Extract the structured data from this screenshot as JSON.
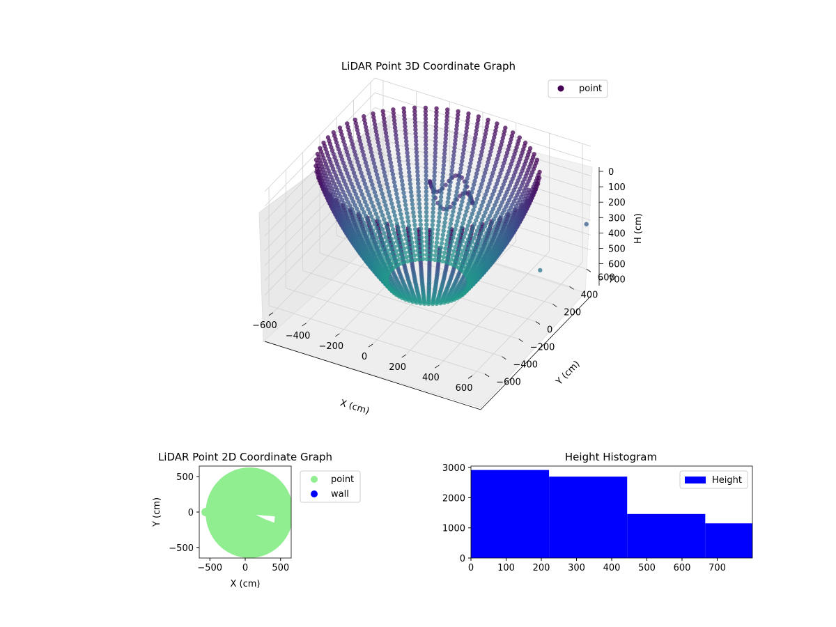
{
  "chart_data": [
    {
      "type": "scatter",
      "projection": "3d",
      "title": "LiDAR Point 3D Coordinate Graph",
      "xlabel": "X (cm)",
      "ylabel": "Y (cm)",
      "zlabel": "H (cm)",
      "xlim": [
        -650,
        650
      ],
      "ylim": [
        -650,
        650
      ],
      "zlim": [
        800,
        0
      ],
      "z_inverted": true,
      "xticks": [
        "−600",
        "−400",
        "−200",
        "0",
        "200",
        "400",
        "600"
      ],
      "yticks": [
        "−600",
        "−400",
        "−200",
        "0",
        "200",
        "400",
        "600"
      ],
      "zticks": [
        "0",
        "100",
        "200",
        "300",
        "400",
        "500",
        "600",
        "700"
      ],
      "legend": [
        {
          "label": "point",
          "color": "#440154"
        }
      ],
      "legend_position": "top-right",
      "colormap": "viridis",
      "grid": true,
      "shape": "funnel of points: radius ~600 cm at H 0, ~220 cm at H 700, with an inner blob near the top",
      "outliers": [
        {
          "x": 600,
          "y": 150,
          "h": 560
        },
        {
          "x": 700,
          "y": 500,
          "h": 420
        }
      ]
    },
    {
      "type": "scatter",
      "title": "LiDAR Point 2D Coordinate Graph",
      "xlabel": "X (cm)",
      "ylabel": "Y (cm)",
      "xlim": [
        -650,
        650
      ],
      "ylim": [
        -650,
        650
      ],
      "xticks": [
        "−500",
        "0",
        "500"
      ],
      "yticks": [
        "500",
        "0",
        "−500"
      ],
      "legend": [
        {
          "label": "point",
          "color": "#90ee90"
        },
        {
          "label": "wall",
          "color": "#0000ff"
        }
      ],
      "legend_position": "outside-right",
      "point_region": "filled disc of radius ~620 cm centered near (50, 0) with a notch near (200, -70)"
    },
    {
      "type": "bar",
      "histogram": true,
      "title": "Height Histogram",
      "xlim": [
        0,
        800
      ],
      "ylim": [
        0,
        3050
      ],
      "xticks": [
        "0",
        "100",
        "200",
        "300",
        "400",
        "500",
        "600",
        "700"
      ],
      "yticks": [
        "0",
        "1000",
        "2000",
        "3000"
      ],
      "bins": [
        {
          "start": 0,
          "end": 222,
          "count": 2920
        },
        {
          "start": 222,
          "end": 444,
          "count": 2700
        },
        {
          "start": 444,
          "end": 666,
          "count": 1460
        },
        {
          "start": 666,
          "end": 800,
          "count": 1150
        }
      ],
      "color": "#0000ff",
      "legend": [
        {
          "label": "Height",
          "color": "#0000ff"
        }
      ],
      "legend_position": "top-right"
    }
  ]
}
